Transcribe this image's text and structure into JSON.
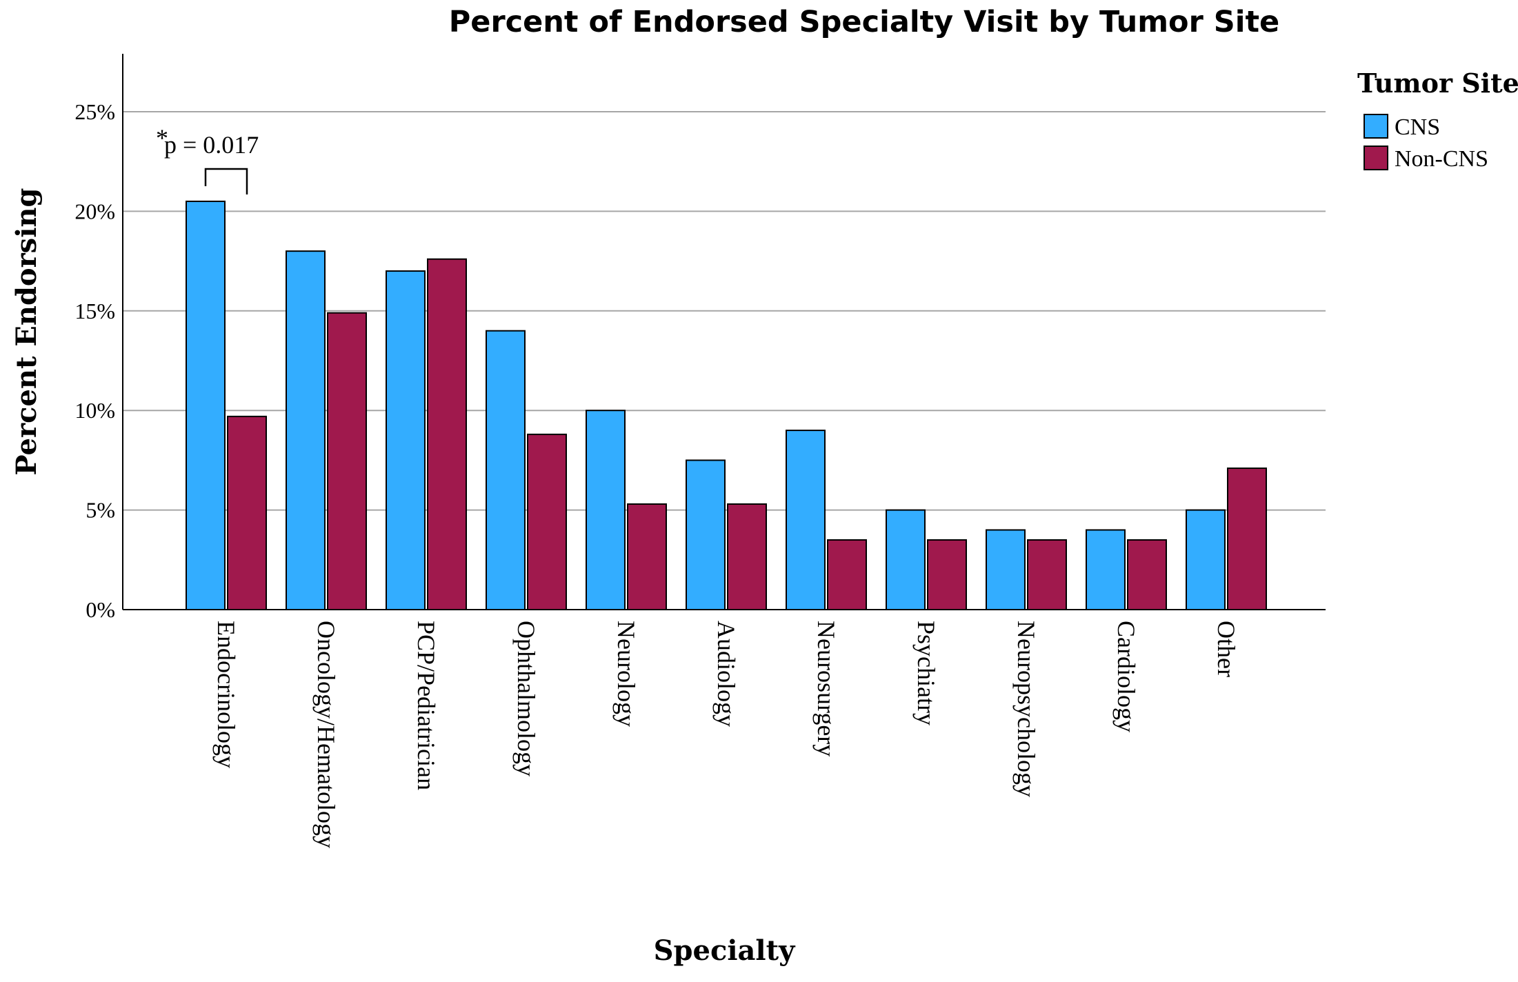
{
  "chart_data": {
    "type": "bar",
    "title": "Percent of Endorsed Specialty Visit  by Tumor Site",
    "xlabel": "Specialty",
    "ylabel": "Percent Endorsing",
    "ylim": [
      0,
      0.28
    ],
    "yticks": [
      {
        "value": 0,
        "label": "0%"
      },
      {
        "value": 0.05,
        "label": "5%"
      },
      {
        "value": 0.1,
        "label": "10%"
      },
      {
        "value": 0.15,
        "label": "15%"
      },
      {
        "value": 0.2,
        "label": "20%"
      },
      {
        "value": 0.25,
        "label": "25%"
      }
    ],
    "grid": true,
    "categories": [
      "Endocrinology",
      "Oncology/Hematology",
      "PCP/Pediatrician",
      "Ophthalmology",
      "Neurology",
      "Audiology",
      "Neurosurgery",
      "Psychiatry",
      "Neuropsychology",
      "Cardiology",
      "Other"
    ],
    "series": [
      {
        "name": "CNS",
        "color": "#33adff",
        "values": [
          0.205,
          0.18,
          0.17,
          0.14,
          0.1,
          0.075,
          0.09,
          0.05,
          0.04,
          0.04,
          0.05
        ]
      },
      {
        "name": "Non-CNS",
        "color": "#a0194d",
        "values": [
          0.097,
          0.149,
          0.176,
          0.088,
          0.053,
          0.053,
          0.035,
          0.035,
          0.035,
          0.035,
          0.071
        ]
      }
    ],
    "legend": {
      "title": "Tumor Site",
      "position": "right"
    },
    "annotation": {
      "star": "*",
      "text": "p = 0.017",
      "category": "Endocrinology"
    }
  }
}
